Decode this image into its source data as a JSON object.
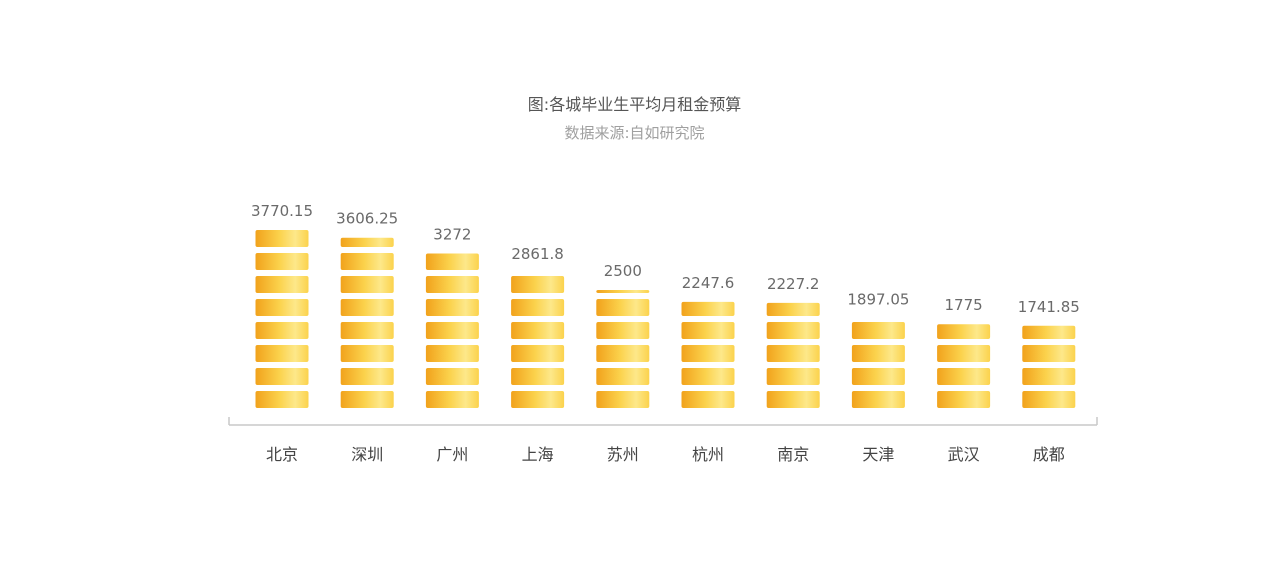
{
  "chart_data": {
    "type": "bar",
    "title": "图:各城毕业生平均月租金预算",
    "subtitle": "数据来源:自如研究院",
    "categories": [
      "北京",
      "深圳",
      "广州",
      "上海",
      "苏州",
      "杭州",
      "南京",
      "天津",
      "武汉",
      "成都"
    ],
    "values": [
      3770.15,
      3606.25,
      3272,
      2861.8,
      2500,
      2247.6,
      2227.2,
      1897.05,
      1775,
      1741.85
    ],
    "value_labels": [
      "3770.15",
      "3606.25",
      "3272",
      "2861.8",
      "2500",
      "2247.6",
      "2227.2",
      "1897.05",
      "1775",
      "1741.85"
    ],
    "xlabel": "",
    "ylabel": "",
    "ylim": [
      0,
      4200
    ],
    "grid": false,
    "legend": "none",
    "bar_style": "stacked-coins",
    "colors": {
      "coin_edge": "#f1a21c",
      "coin_mid": "#fbd24c",
      "coin_light": "#fde88a",
      "axis": "#c8c8c8",
      "value_text": "#6a6a6a",
      "category_text": "#444444"
    }
  }
}
